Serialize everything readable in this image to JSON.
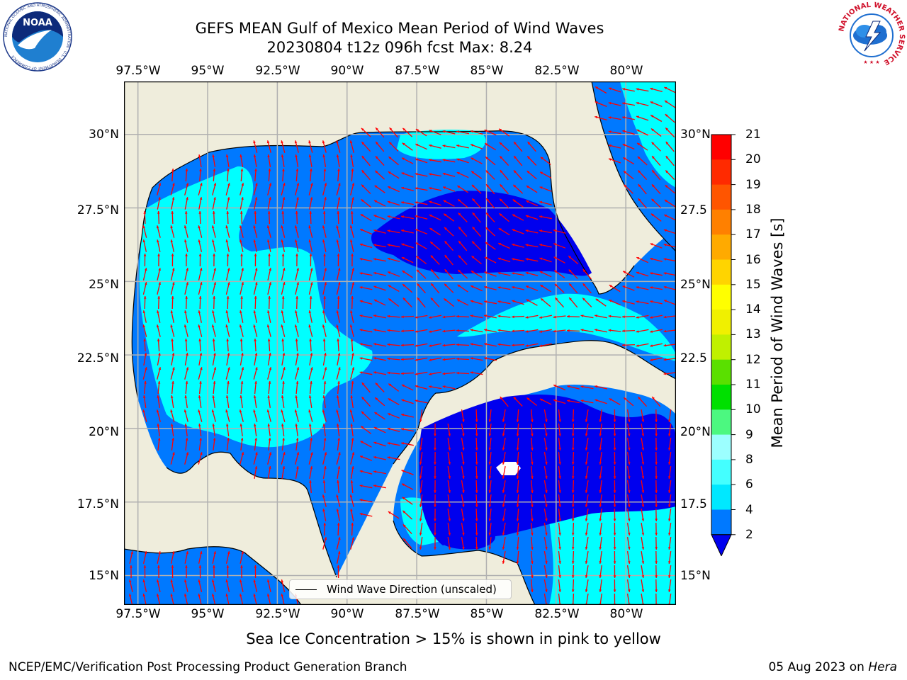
{
  "title": {
    "line1": "GEFS MEAN Gulf of Mexico Mean Period of Wind Waves",
    "line2": "20230804 t12z 096h fcst   Max: 8.24"
  },
  "map": {
    "lon_labels": [
      "97.5°W",
      "95°W",
      "92.5°W",
      "90°W",
      "87.5°W",
      "85°W",
      "82.5°W",
      "80°W"
    ],
    "lat_labels_left": [
      "30°N",
      "27.5°N",
      "25°N",
      "22.5°N",
      "20°N",
      "17.5°N",
      "15°N"
    ],
    "lat_labels_right": [
      "30°N",
      "27.5",
      "25°N",
      "22.5",
      "20°N",
      "17.5",
      "15°N"
    ],
    "lon_range": [
      -98,
      -78.2
    ],
    "lat_range": [
      14,
      31.8
    ],
    "legend_label": "Wind Wave Direction (unscaled)",
    "arrow_color": "#ff0000",
    "land_color": "#efeddc",
    "grid_color": "#b0b0b0"
  },
  "colorbar": {
    "label": "Mean Period of Wind Waves [s]",
    "ticks": [
      "2",
      "4",
      "6",
      "8",
      "9",
      "10",
      "11",
      "12",
      "13",
      "14",
      "15",
      "16",
      "17",
      "18",
      "19",
      "20",
      "21"
    ],
    "colors": [
      "#0079ff",
      "#00e8ff",
      "#44ffff",
      "#9cffff",
      "#4cf880",
      "#00e000",
      "#5ae000",
      "#c0f000",
      "#f0f000",
      "#ffff00",
      "#ffd400",
      "#ffaa00",
      "#ff8000",
      "#ff5500",
      "#ff2a00",
      "#ff0000"
    ],
    "extend_below_color": "#0000ee"
  },
  "notes": {
    "sea_ice": "Sea Ice Concentration > 15% is shown in pink to yellow",
    "branch": "NCEP/EMC/Verification Post Processing Product Generation Branch",
    "date": "05 Aug 2023 on ",
    "host": "Hera"
  },
  "logos": {
    "noaa_text": "NOAA",
    "noaa_ring": "NATIONAL OCEANIC AND ATMOSPHERIC ADMINISTRATION · U.S. DEPARTMENT OF COMMERCE",
    "nws_ring": "NATIONAL WEATHER SERVICE"
  }
}
